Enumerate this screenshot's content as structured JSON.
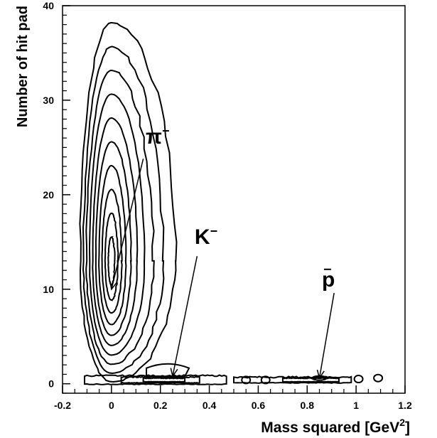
{
  "chart_data": {
    "type": "contour",
    "xlabel": "Mass squared [GeV",
    "xlabel_sup": "2",
    "xlabel_end": "]",
    "ylabel": "Number of hit pad",
    "xlim": [
      -0.2,
      1.2
    ],
    "ylim": [
      -1,
      40
    ],
    "xticks": [
      -0.2,
      0,
      0.2,
      0.4,
      0.6,
      0.8,
      1,
      1.2
    ],
    "xtick_labels": [
      "-0.2",
      "0",
      "0.2",
      "0.4",
      "0.6",
      "0.8",
      "1",
      "1.2"
    ],
    "yticks": [
      0,
      10,
      20,
      30,
      40
    ],
    "ytick_labels": [
      "0",
      "10",
      "20",
      "30",
      "40"
    ],
    "grid": false,
    "annotations": [
      {
        "name": "pi-minus",
        "base": "π",
        "sup": "−",
        "label_at": [
          0.14,
          25.4
        ],
        "arrow_from": [
          0.13,
          23.8
        ],
        "arrow_to": [
          0.0,
          10.0
        ]
      },
      {
        "name": "k-minus",
        "base": "K",
        "sup": "−",
        "label_at": [
          0.34,
          14.8
        ],
        "arrow_from": [
          0.35,
          13.5
        ],
        "arrow_to": [
          0.25,
          0.8
        ]
      },
      {
        "name": "anti-proton",
        "base": "p",
        "bar": true,
        "label_at": [
          0.86,
          10.3
        ],
        "arrow_from": [
          0.91,
          9.6
        ],
        "arrow_to": [
          0.85,
          0.6
        ]
      }
    ],
    "contours": {
      "pion_peak": {
        "x_center": 0.0,
        "y_center": 13.0,
        "y_top": 38.2,
        "levels": 10
      },
      "kaon_peak": {
        "x_center": 0.23,
        "y_center": 0.3
      },
      "proton_peak": {
        "x_center": 0.85,
        "y_center": 0.6
      },
      "band_y": 0.4,
      "band_x_range": [
        -0.12,
        1.1
      ]
    }
  }
}
